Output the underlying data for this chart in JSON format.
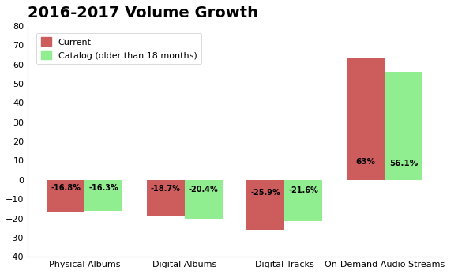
{
  "title": "2016-2017 Volume Growth",
  "categories": [
    "Physical Albums",
    "Digital Albums",
    "Digital Tracks",
    "On-Demand Audio Streams"
  ],
  "current_values": [
    -16.8,
    -18.7,
    -25.9,
    63.0
  ],
  "catalog_values": [
    -16.3,
    -20.4,
    -21.6,
    56.1
  ],
  "current_labels": [
    "-16.8%",
    "-18.7%",
    "-25.9%",
    "63%"
  ],
  "catalog_labels": [
    "-16.3%",
    "-20.4%",
    "-21.6%",
    "56.1%"
  ],
  "current_color": "#CD5C5C",
  "catalog_color": "#90EE90",
  "current_legend": "Current",
  "catalog_legend": "Catalog (older than 18 months)",
  "ylim": [
    -40,
    80
  ],
  "yticks": [
    -40,
    -30,
    -20,
    -10,
    0,
    10,
    20,
    30,
    40,
    50,
    60,
    70,
    80
  ],
  "bar_width": 0.38,
  "bg_color": "#ffffff",
  "title_fontsize": 14
}
